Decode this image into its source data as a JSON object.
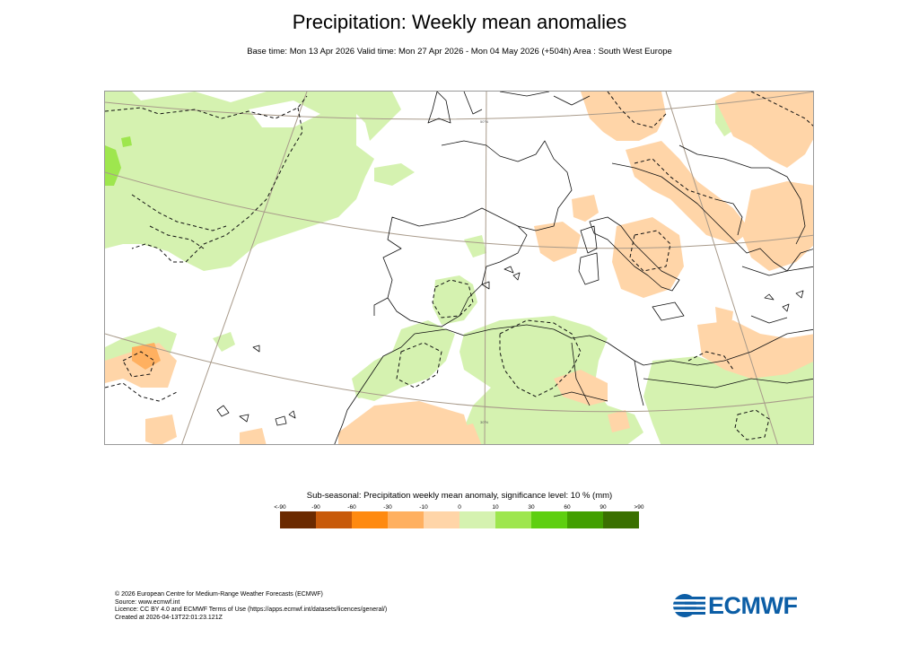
{
  "header": {
    "title": "Precipitation: Weekly mean anomalies",
    "subtitle": "Base time: Mon 13 Apr 2026 Valid time: Mon 27 Apr 2026 - Mon 04 May 2026 (+504h) Area : South West Europe"
  },
  "legend": {
    "title": "Sub-seasonal: Precipitation weekly mean anomaly, significance level: 10 % (mm)",
    "ticks": [
      "<-90",
      "-90",
      "-60",
      "-30",
      "-10",
      "0",
      "10",
      "30",
      "60",
      "90",
      ">90"
    ],
    "colors": [
      "#6b2a00",
      "#c85a0a",
      "#ff8a10",
      "#ffb060",
      "#ffd5a8",
      "#d5f2b0",
      "#9ee64e",
      "#5ecf10",
      "#429f00",
      "#3a7000"
    ]
  },
  "map": {
    "line_colors": {
      "coast": "#000000",
      "graticule": "#a89a8a",
      "significance": "#000000"
    }
  },
  "footer": {
    "copyright": "© 2026 European Centre for Medium-Range Weather Forecasts (ECMWF)",
    "source": "Source: www.ecmwf.int",
    "licence": "Licence: CC BY 4.0 and ECMWF Terms of Use (https://apps.ecmwf.int/datasets/licences/general/)",
    "created": "Created at 2026-04-13T22:01:23.121Z"
  },
  "logo": {
    "text": "ECMWF",
    "icon": "ecmwf-logo-icon"
  }
}
